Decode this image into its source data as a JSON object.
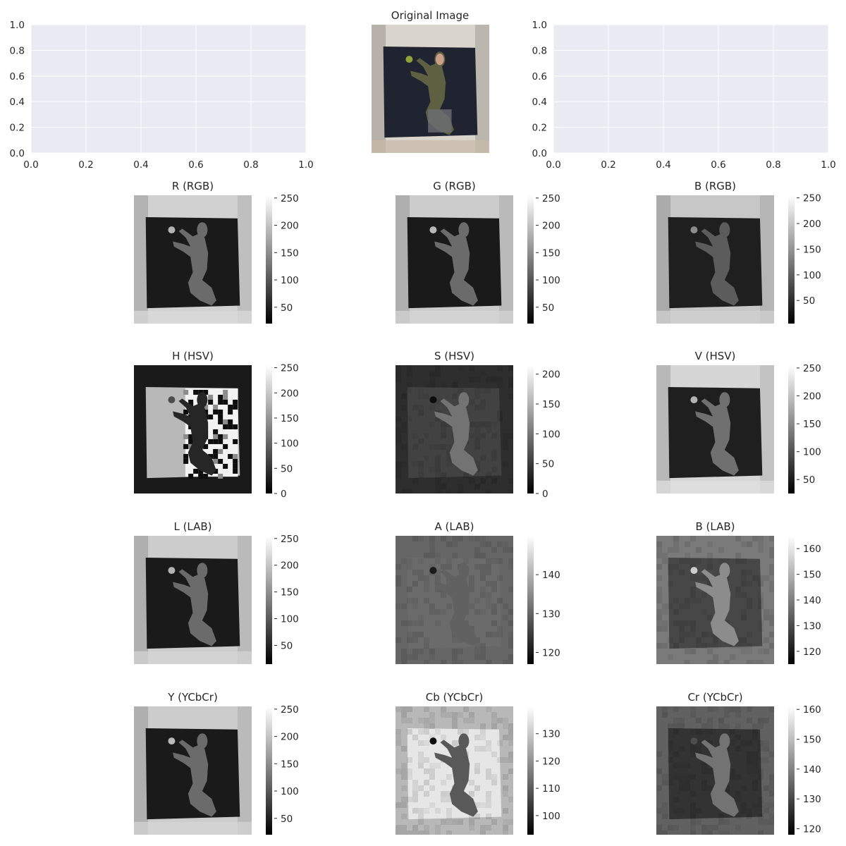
{
  "figure": {
    "original_title": "Original Image",
    "style": {
      "axes_facecolor": "#eaeaf2",
      "grid_color": "#ffffff",
      "text_color": "#262626",
      "background": "#ffffff"
    }
  },
  "chart_data": [
    {
      "type": "empty-axes",
      "title": "",
      "xlim": [
        0,
        1
      ],
      "ylim": [
        0,
        1
      ],
      "xticks": [
        "0.0",
        "0.2",
        "0.4",
        "0.6",
        "0.8",
        "1.0"
      ],
      "yticks": [
        "0.0",
        "0.2",
        "0.4",
        "0.6",
        "0.8",
        "1.0"
      ],
      "grid": true
    },
    {
      "type": "image",
      "title": "Original Image",
      "content": "color photograph",
      "colors": {
        "wall_top": "#d9d4cc",
        "wall_side": "#a9a39a",
        "canvas": "#1f2430",
        "sweater": "#5d6142",
        "apple": "#8fa33c",
        "skin": "#c9a089"
      }
    },
    {
      "type": "empty-axes",
      "title": "",
      "xlim": [
        0,
        1
      ],
      "ylim": [
        0,
        1
      ],
      "xticks": [
        "0.0",
        "0.2",
        "0.4",
        "0.6",
        "0.8",
        "1.0"
      ],
      "yticks": [
        "0.0",
        "0.2",
        "0.4",
        "0.6",
        "0.8",
        "1.0"
      ],
      "grid": true
    },
    {
      "type": "heatmap",
      "title": "R (RGB)",
      "colormap": "gray",
      "variant": "natural",
      "vmin": 20,
      "vmax": 255,
      "colorbar_ticks": [
        50,
        100,
        150,
        200,
        250
      ],
      "tones": {
        "wall": 0.82,
        "canvas": 0.1,
        "figure": 0.42,
        "apple": 0.7
      }
    },
    {
      "type": "heatmap",
      "title": "G (RGB)",
      "colormap": "gray",
      "variant": "natural",
      "vmin": 20,
      "vmax": 255,
      "colorbar_ticks": [
        50,
        100,
        150,
        200,
        250
      ],
      "tones": {
        "wall": 0.8,
        "canvas": 0.1,
        "figure": 0.42,
        "apple": 0.72
      }
    },
    {
      "type": "heatmap",
      "title": "B (RGB)",
      "colormap": "gray",
      "variant": "natural",
      "vmin": 5,
      "vmax": 255,
      "colorbar_ticks": [
        50,
        100,
        150,
        200,
        250
      ],
      "tones": {
        "wall": 0.78,
        "canvas": 0.12,
        "figure": 0.36,
        "apple": 0.55
      }
    },
    {
      "type": "heatmap",
      "title": "H (HSV)",
      "colormap": "gray",
      "variant": "hue",
      "vmin": 0,
      "vmax": 255,
      "colorbar_ticks": [
        0,
        50,
        100,
        150,
        200,
        250
      ],
      "tones": {
        "wall": 0.1,
        "canvas": 0.72,
        "figure": 0.15,
        "apple": 0.3
      }
    },
    {
      "type": "heatmap",
      "title": "S (HSV)",
      "colormap": "gray",
      "variant": "saturation",
      "vmin": 0,
      "vmax": 215,
      "colorbar_ticks": [
        0,
        50,
        100,
        150,
        200
      ],
      "tones": {
        "wall": 0.18,
        "canvas": 0.26,
        "figure": 0.45,
        "apple": 0.05
      }
    },
    {
      "type": "heatmap",
      "title": "V (HSV)",
      "colormap": "gray",
      "variant": "natural",
      "vmin": 25,
      "vmax": 255,
      "colorbar_ticks": [
        50,
        100,
        150,
        200,
        250
      ],
      "tones": {
        "wall": 0.84,
        "canvas": 0.12,
        "figure": 0.44,
        "apple": 0.7
      }
    },
    {
      "type": "heatmap",
      "title": "L (LAB)",
      "colormap": "gray",
      "variant": "natural",
      "vmin": 15,
      "vmax": 255,
      "colorbar_ticks": [
        50,
        100,
        150,
        200,
        250
      ],
      "tones": {
        "wall": 0.8,
        "canvas": 0.1,
        "figure": 0.42,
        "apple": 0.7
      }
    },
    {
      "type": "heatmap",
      "title": "A (LAB)",
      "colormap": "gray",
      "variant": "flat",
      "vmin": 117,
      "vmax": 150,
      "colorbar_ticks": [
        120,
        130,
        140
      ],
      "tones": {
        "wall": 0.4,
        "canvas": 0.42,
        "figure": 0.38,
        "apple": 0.1
      }
    },
    {
      "type": "heatmap",
      "title": "B (LAB)",
      "colormap": "gray",
      "variant": "flat",
      "vmin": 115,
      "vmax": 165,
      "colorbar_ticks": [
        120,
        130,
        140,
        150,
        160
      ],
      "tones": {
        "wall": 0.48,
        "canvas": 0.28,
        "figure": 0.55,
        "apple": 0.8
      }
    },
    {
      "type": "heatmap",
      "title": "Y (YCbCr)",
      "colormap": "gray",
      "variant": "natural",
      "vmin": 20,
      "vmax": 255,
      "colorbar_ticks": [
        50,
        100,
        150,
        200,
        250
      ],
      "tones": {
        "wall": 0.8,
        "canvas": 0.1,
        "figure": 0.42,
        "apple": 0.72
      }
    },
    {
      "type": "heatmap",
      "title": "Cb (YCbCr)",
      "colormap": "gray",
      "variant": "cb",
      "vmin": 93,
      "vmax": 140,
      "colorbar_ticks": [
        100,
        110,
        120,
        130
      ],
      "tones": {
        "wall": 0.72,
        "canvas": 0.9,
        "figure": 0.35,
        "apple": 0.05
      }
    },
    {
      "type": "heatmap",
      "title": "Cr (YCbCr)",
      "colormap": "gray",
      "variant": "flat",
      "vmin": 118,
      "vmax": 161,
      "colorbar_ticks": [
        120,
        130,
        140,
        150,
        160
      ],
      "tones": {
        "wall": 0.38,
        "canvas": 0.2,
        "figure": 0.45,
        "apple": 0.3
      }
    }
  ]
}
